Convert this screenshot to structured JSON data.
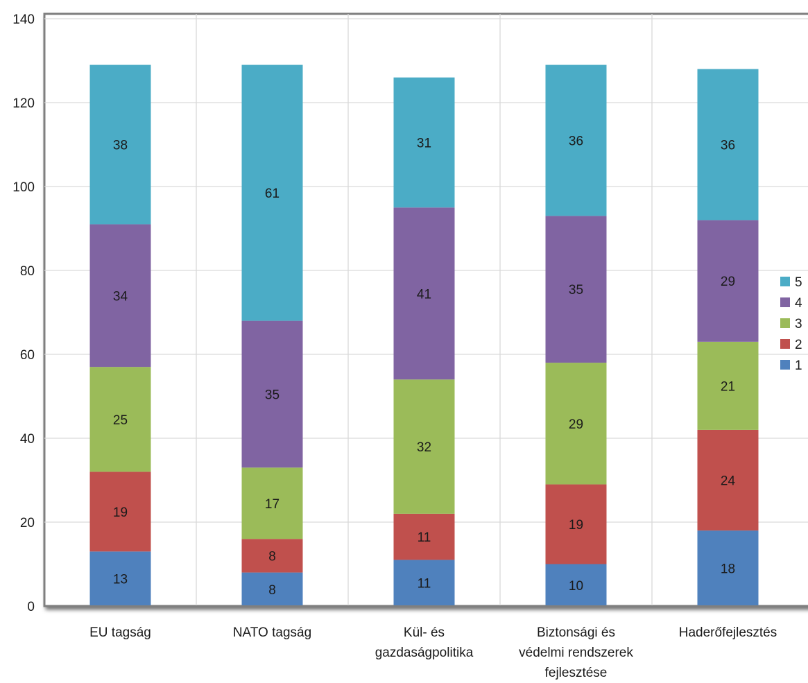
{
  "chart_data": {
    "type": "bar",
    "stacked": true,
    "categories": [
      [
        "EU tagság"
      ],
      [
        "NATO tagság"
      ],
      [
        "Kül- és",
        "gazdaságpolitika"
      ],
      [
        "Biztonsági és",
        "védelmi rendszerek",
        "fejlesztése"
      ],
      [
        "Haderőfejlesztés"
      ]
    ],
    "series": [
      {
        "name": "1",
        "color": "#4F81BD",
        "values": [
          13,
          8,
          11,
          10,
          18
        ]
      },
      {
        "name": "2",
        "color": "#C0504D",
        "values": [
          19,
          8,
          11,
          19,
          24
        ]
      },
      {
        "name": "3",
        "color": "#9BBB59",
        "values": [
          25,
          17,
          32,
          29,
          21
        ]
      },
      {
        "name": "4",
        "color": "#8064A2",
        "values": [
          34,
          35,
          41,
          35,
          29
        ]
      },
      {
        "name": "5",
        "color": "#4BACC6",
        "values": [
          38,
          61,
          31,
          36,
          36
        ]
      }
    ],
    "ylim": [
      0,
      140
    ],
    "yticks": [
      0,
      20,
      40,
      60,
      80,
      100,
      120,
      140
    ],
    "grid": true,
    "legend": {
      "placement": "right",
      "order": [
        "5",
        "4",
        "3",
        "2",
        "1"
      ]
    }
  }
}
